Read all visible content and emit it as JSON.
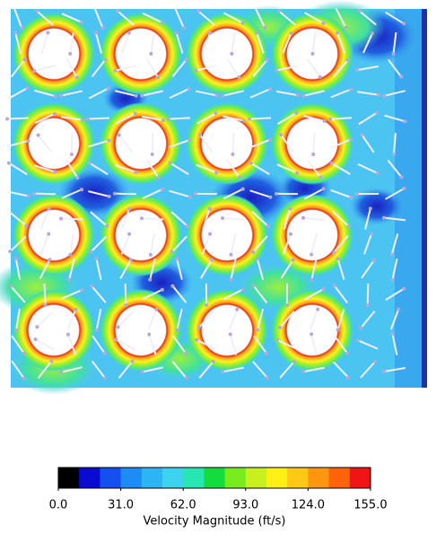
{
  "chart_data": {
    "type": "colorbar",
    "colorbar_label": "Velocity Magnitude (ft/s)",
    "clim": [
      0,
      155
    ],
    "cticks": [
      {
        "value": 0,
        "label": "0.0"
      },
      {
        "value": 31,
        "label": "31.0"
      },
      {
        "value": 62,
        "label": "62.0"
      },
      {
        "value": 93,
        "label": "93.0"
      },
      {
        "value": 124,
        "label": "124.0"
      },
      {
        "value": 155,
        "label": "155.0"
      }
    ],
    "colors": [
      "#000000",
      "#0a0ad2",
      "#1450f0",
      "#1e8cf5",
      "#2db4f5",
      "#3cd2f0",
      "#28e6b4",
      "#14dc3c",
      "#78eb1e",
      "#c8f01e",
      "#fff014",
      "#ffc814",
      "#ff960f",
      "#ff640a",
      "#f01414"
    ]
  }
}
